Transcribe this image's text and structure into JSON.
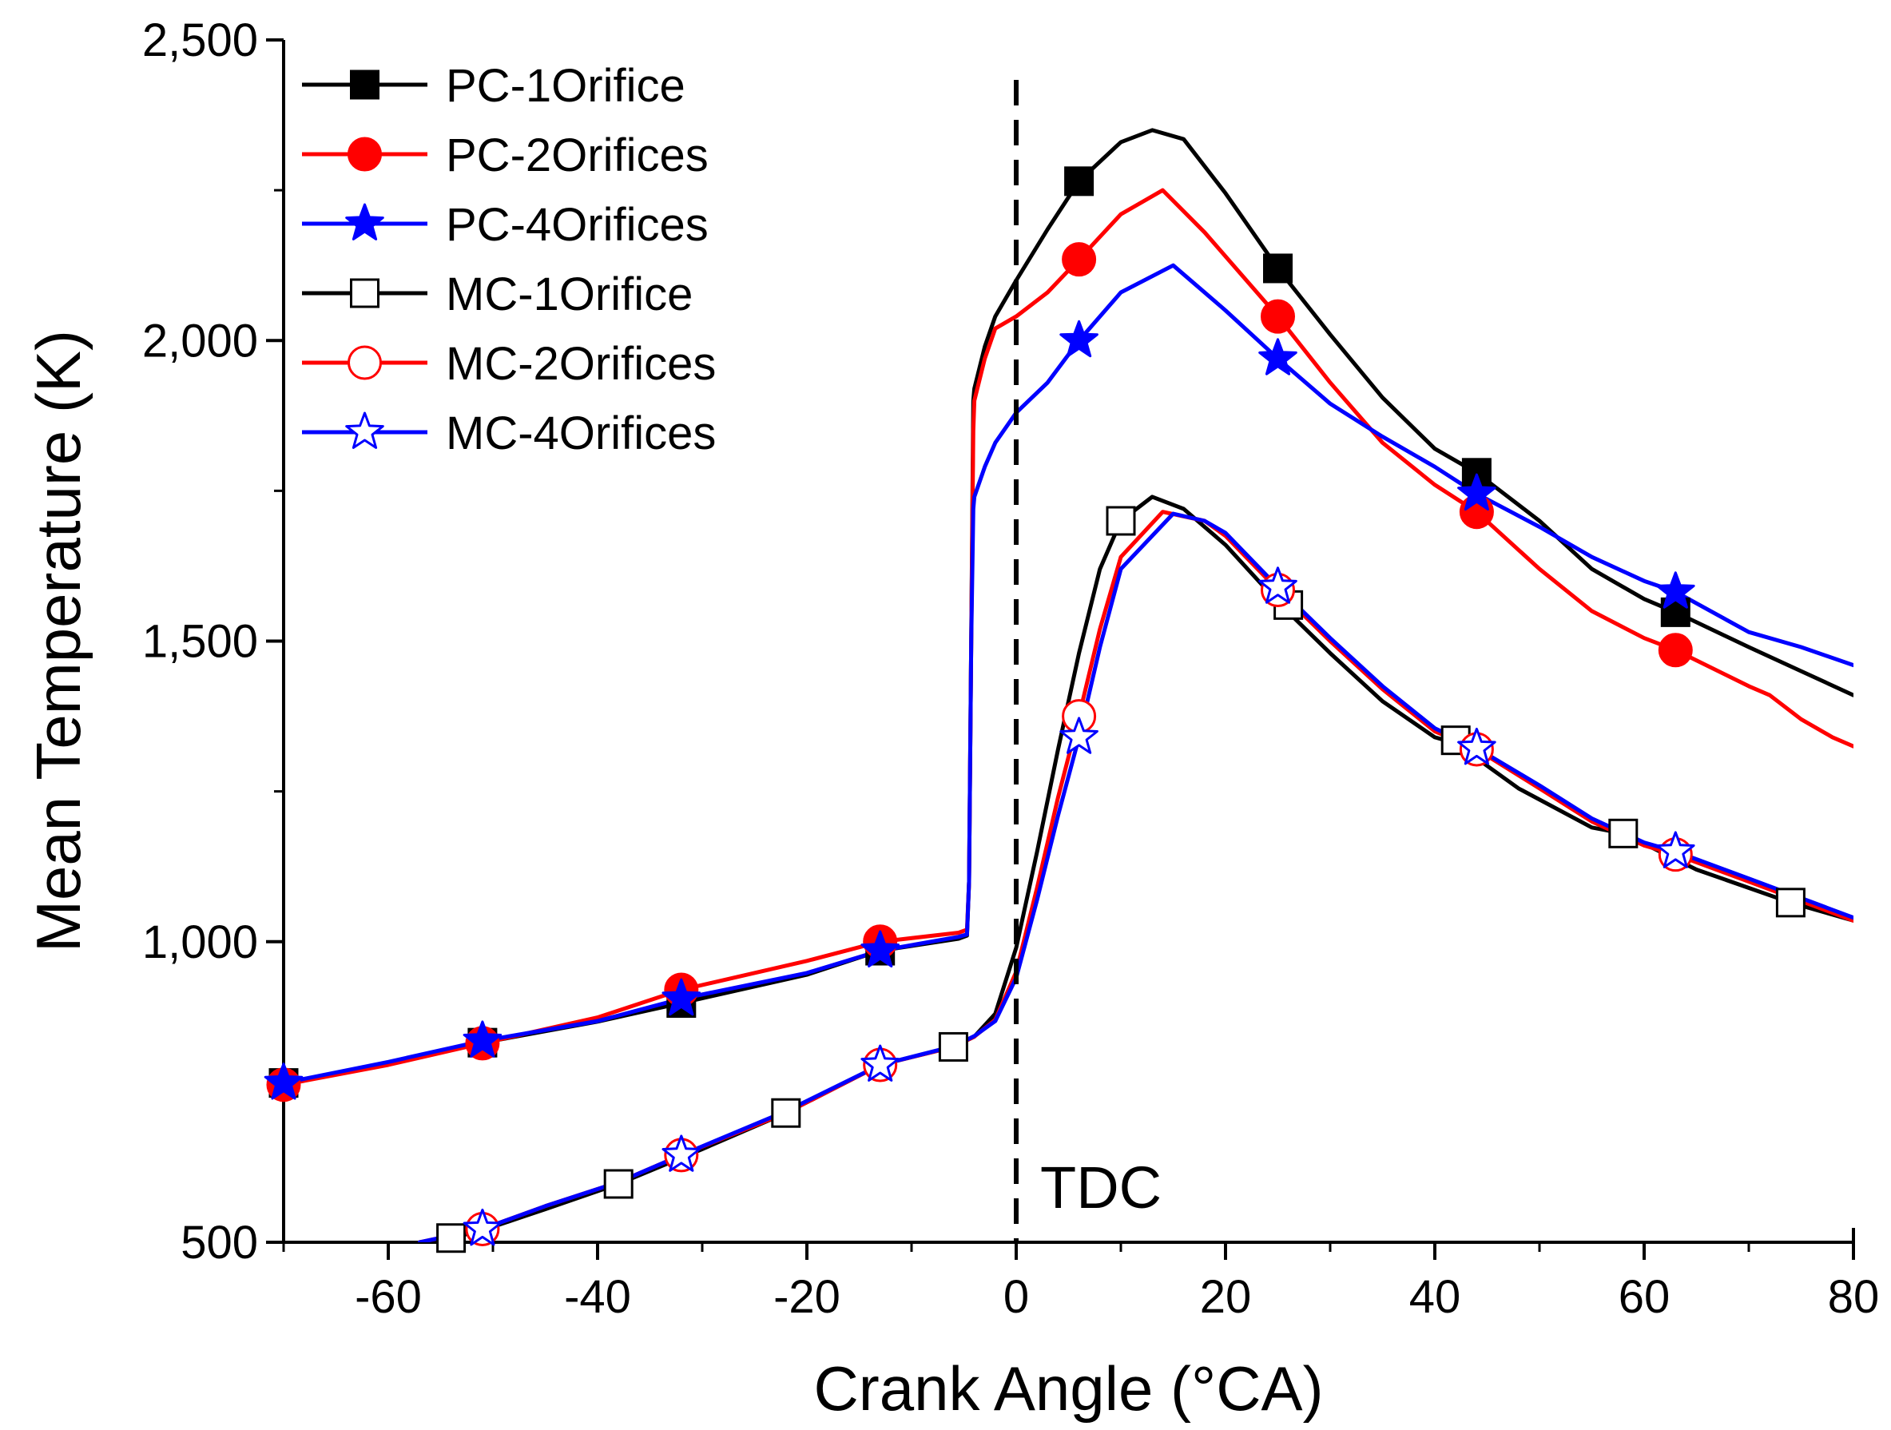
{
  "chart_data": {
    "type": "line",
    "title": "",
    "xlabel": "Crank Angle (°CA)",
    "ylabel": "Mean Temperature (K)",
    "xlim": [
      -70,
      80
    ],
    "ylim": [
      500,
      2500
    ],
    "xticks": [
      -60,
      -40,
      -20,
      0,
      20,
      40,
      60,
      80
    ],
    "xtick_labels": [
      "-60",
      "-40",
      "-20",
      "0",
      "20",
      "40",
      "60",
      "80"
    ],
    "yticks": [
      500,
      1000,
      1500,
      2000,
      2500
    ],
    "ytick_labels": [
      "500",
      "1,000",
      "1,500",
      "2,000",
      "2,500"
    ],
    "grid": false,
    "legend_position": "top-left",
    "annotations": [
      {
        "text": "TDC",
        "x": 0,
        "style": "dashed vertical line"
      }
    ],
    "series": [
      {
        "name": "PC-1Orifice",
        "color": "#000000",
        "marker": "square",
        "marker_fill": "filled",
        "x": [
          -70,
          -60,
          -51,
          -40,
          -32,
          -20,
          -13,
          -5.5,
          -4.7,
          -4.5,
          -4.3,
          -4.1,
          -4,
          -3,
          -2,
          0,
          3,
          6,
          10,
          13,
          16,
          20,
          25,
          30,
          35,
          40,
          44,
          50,
          55,
          60,
          63,
          70,
          75,
          80
        ],
        "y": [
          765,
          798,
          832,
          867,
          898,
          945,
          985,
          1005,
          1010,
          1100,
          1500,
          1900,
          1920,
          1990,
          2040,
          2100,
          2185,
          2265,
          2330,
          2350,
          2335,
          2245,
          2120,
          2010,
          1905,
          1820,
          1780,
          1700,
          1620,
          1570,
          1548,
          1490,
          1450,
          1410
        ],
        "markers_x": [
          -70,
          -51,
          -32,
          -13,
          6,
          25,
          44,
          63
        ],
        "markers_y": [
          765,
          832,
          898,
          985,
          2265,
          2120,
          1780,
          1548
        ]
      },
      {
        "name": "PC-2Orifices",
        "color": "#ff0000",
        "marker": "circle",
        "marker_fill": "filled",
        "x": [
          -70,
          -60,
          -51,
          -40,
          -32,
          -20,
          -13,
          -5.5,
          -4.7,
          -4.5,
          -4.3,
          -4.1,
          -4,
          -3,
          -2,
          0,
          3,
          6,
          10,
          14,
          18,
          25,
          30,
          35,
          40,
          44,
          50,
          55,
          60,
          63,
          70,
          72,
          75,
          78,
          80
        ],
        "y": [
          762,
          795,
          831,
          874,
          920,
          968,
          1000,
          1015,
          1020,
          1100,
          1500,
          1850,
          1900,
          1970,
          2020,
          2040,
          2080,
          2135,
          2210,
          2250,
          2180,
          2040,
          1930,
          1830,
          1760,
          1715,
          1620,
          1550,
          1505,
          1485,
          1425,
          1410,
          1370,
          1340,
          1325
        ],
        "markers_x": [
          -70,
          -51,
          -32,
          -13,
          6,
          25,
          44,
          63
        ],
        "markers_y": [
          762,
          831,
          920,
          1000,
          2135,
          2040,
          1715,
          1485
        ]
      },
      {
        "name": "PC-4Orifices",
        "color": "#0000ff",
        "marker": "star",
        "marker_fill": "filled",
        "x": [
          -70,
          -60,
          -51,
          -40,
          -32,
          -20,
          -13,
          -5.5,
          -4.7,
          -4.5,
          -4.3,
          -4.1,
          -4,
          -3,
          -2,
          0,
          3,
          6,
          10,
          15,
          20,
          25,
          30,
          35,
          40,
          44,
          50,
          55,
          60,
          63,
          70,
          75,
          80
        ],
        "y": [
          765,
          800,
          835,
          868,
          905,
          948,
          985,
          1008,
          1012,
          1100,
          1500,
          1720,
          1740,
          1790,
          1830,
          1880,
          1930,
          2000,
          2080,
          2125,
          2050,
          1970,
          1895,
          1840,
          1790,
          1745,
          1690,
          1640,
          1600,
          1582,
          1515,
          1490,
          1460
        ],
        "markers_x": [
          -70,
          -51,
          -32,
          -13,
          6,
          25,
          44,
          63
        ],
        "markers_y": [
          765,
          835,
          905,
          985,
          2000,
          1970,
          1745,
          1582
        ]
      },
      {
        "name": "MC-1Orifice",
        "color": "#000000",
        "marker": "square",
        "marker_fill": "open",
        "x": [
          -57,
          -54,
          -51,
          -45,
          -38,
          -30,
          -22,
          -13,
          -6,
          -4,
          -2,
          0,
          2,
          4,
          6,
          8,
          10,
          13,
          16,
          20,
          25,
          30,
          35,
          40,
          42,
          48,
          55,
          58,
          65,
          74,
          80
        ],
        "y": [
          500,
          507,
          520,
          555,
          597,
          655,
          715,
          795,
          825,
          842,
          880,
          990,
          1150,
          1320,
          1480,
          1620,
          1700,
          1740,
          1720,
          1660,
          1565,
          1480,
          1400,
          1340,
          1330,
          1255,
          1190,
          1180,
          1120,
          1065,
          1035
        ],
        "markers_x": [
          -54,
          -38,
          -22,
          -6,
          10,
          26,
          42,
          58,
          74
        ],
        "markers_y": [
          507,
          597,
          715,
          825,
          1700,
          1560,
          1335,
          1180,
          1065
        ]
      },
      {
        "name": "MC-2Orifices",
        "color": "#ff0000",
        "marker": "circle",
        "marker_fill": "open",
        "x": [
          -57,
          -51,
          -45,
          -38,
          -32,
          -22,
          -13,
          -6,
          -4,
          -2,
          0,
          2,
          4,
          6,
          8,
          10,
          14,
          18,
          20,
          25,
          30,
          35,
          40,
          44,
          50,
          55,
          60,
          63,
          70,
          80
        ],
        "y": [
          500,
          522,
          560,
          600,
          645,
          715,
          795,
          825,
          842,
          870,
          950,
          1090,
          1240,
          1375,
          1520,
          1640,
          1715,
          1700,
          1675,
          1585,
          1500,
          1420,
          1350,
          1320,
          1255,
          1200,
          1160,
          1145,
          1100,
          1035
        ],
        "markers_x": [
          -51,
          -32,
          -13,
          6,
          25,
          44,
          63
        ],
        "markers_y": [
          522,
          645,
          795,
          1375,
          1585,
          1320,
          1145
        ]
      },
      {
        "name": "MC-4Orifices",
        "color": "#0000ff",
        "marker": "star",
        "marker_fill": "open",
        "x": [
          -57,
          -51,
          -45,
          -38,
          -32,
          -22,
          -13,
          -6,
          -4,
          -2,
          0,
          2,
          4,
          6,
          8,
          10,
          15,
          18,
          20,
          25,
          30,
          35,
          40,
          44,
          50,
          55,
          60,
          63,
          70,
          80
        ],
        "y": [
          500,
          522,
          560,
          600,
          645,
          718,
          795,
          826,
          843,
          868,
          940,
          1070,
          1210,
          1340,
          1490,
          1620,
          1712,
          1700,
          1680,
          1590,
          1505,
          1425,
          1355,
          1322,
          1260,
          1205,
          1165,
          1150,
          1105,
          1040
        ],
        "markers_x": [
          -51,
          -32,
          -13,
          6,
          25,
          44,
          63
        ],
        "markers_y": [
          522,
          645,
          795,
          1340,
          1590,
          1322,
          1150
        ]
      }
    ]
  }
}
